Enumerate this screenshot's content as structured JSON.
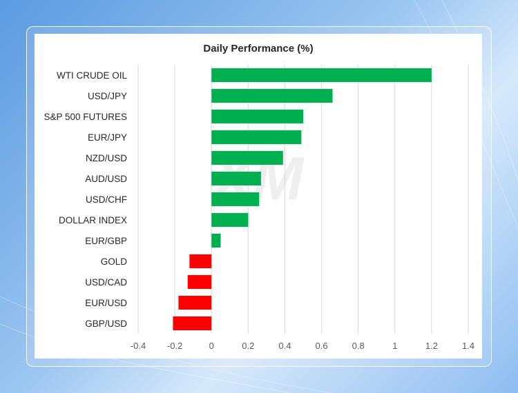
{
  "chart_data": {
    "type": "bar",
    "orientation": "horizontal",
    "title": "Daily Performance  (%)",
    "xlabel": "",
    "ylabel": "",
    "categories": [
      "WTI CRUDE OIL",
      "USD/JPY",
      "S&P 500 FUTURES",
      "EUR/JPY",
      "NZD/USD",
      "AUD/USD",
      "USD/CHF",
      "DOLLAR INDEX",
      "EUR/GBP",
      "GOLD",
      "USD/CAD",
      "EUR/USD",
      "GBP/USD"
    ],
    "values": [
      1.2,
      0.66,
      0.5,
      0.49,
      0.39,
      0.27,
      0.26,
      0.2,
      0.05,
      -0.12,
      -0.13,
      -0.18,
      -0.21
    ],
    "xlim": [
      -0.4,
      1.4
    ],
    "xticks": [
      -0.4,
      -0.2,
      0,
      0.2,
      0.4,
      0.6,
      0.8,
      1,
      1.2,
      1.4
    ],
    "xtick_labels": [
      "-0.4",
      "-0.2",
      "0",
      "0.2",
      "0.4",
      "0.6",
      "0.8",
      "1",
      "1.2",
      "1.4"
    ],
    "grid": "vertical",
    "colors": {
      "positive": "#00b050",
      "negative": "#ff0000",
      "grid": "#d9d9d9",
      "text": "#262626"
    },
    "watermark": "XM"
  }
}
